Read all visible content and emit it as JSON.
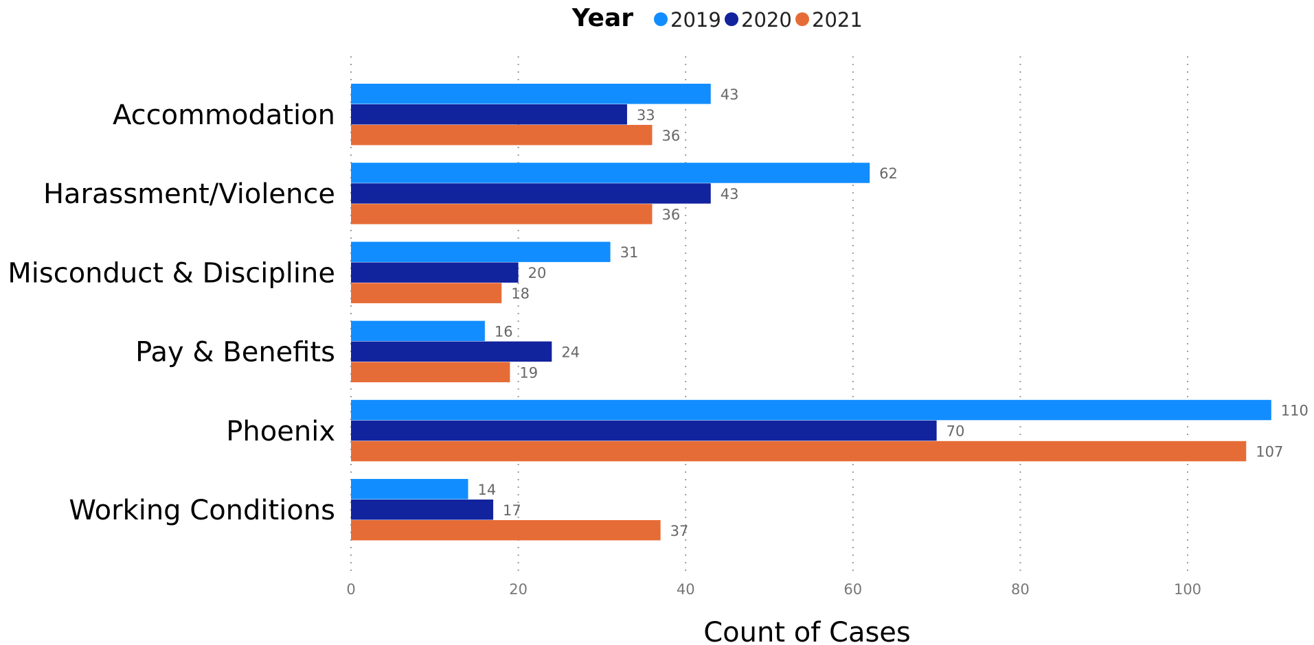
{
  "chart_data": {
    "type": "bar",
    "orientation": "horizontal",
    "categories": [
      "Accommodation",
      "Harassment/Violence",
      "Misconduct & Discipline",
      "Pay & Benefits",
      "Phoenix",
      "Working Conditions"
    ],
    "series": [
      {
        "name": "2019",
        "color": "#118DFF",
        "values": [
          43,
          62,
          31,
          16,
          110,
          14
        ]
      },
      {
        "name": "2020",
        "color": "#12239E",
        "values": [
          33,
          43,
          20,
          24,
          70,
          17
        ]
      },
      {
        "name": "2021",
        "color": "#E66C37",
        "values": [
          36,
          36,
          18,
          19,
          107,
          37
        ]
      }
    ],
    "legend_title": "Year",
    "legend_position": "top",
    "xlabel": "Count of Cases",
    "ylabel": "",
    "xlim": [
      0,
      110
    ],
    "x_ticks": [
      0,
      20,
      40,
      60,
      80,
      100
    ],
    "grid": "vertical-dotted",
    "data_labels": true
  }
}
